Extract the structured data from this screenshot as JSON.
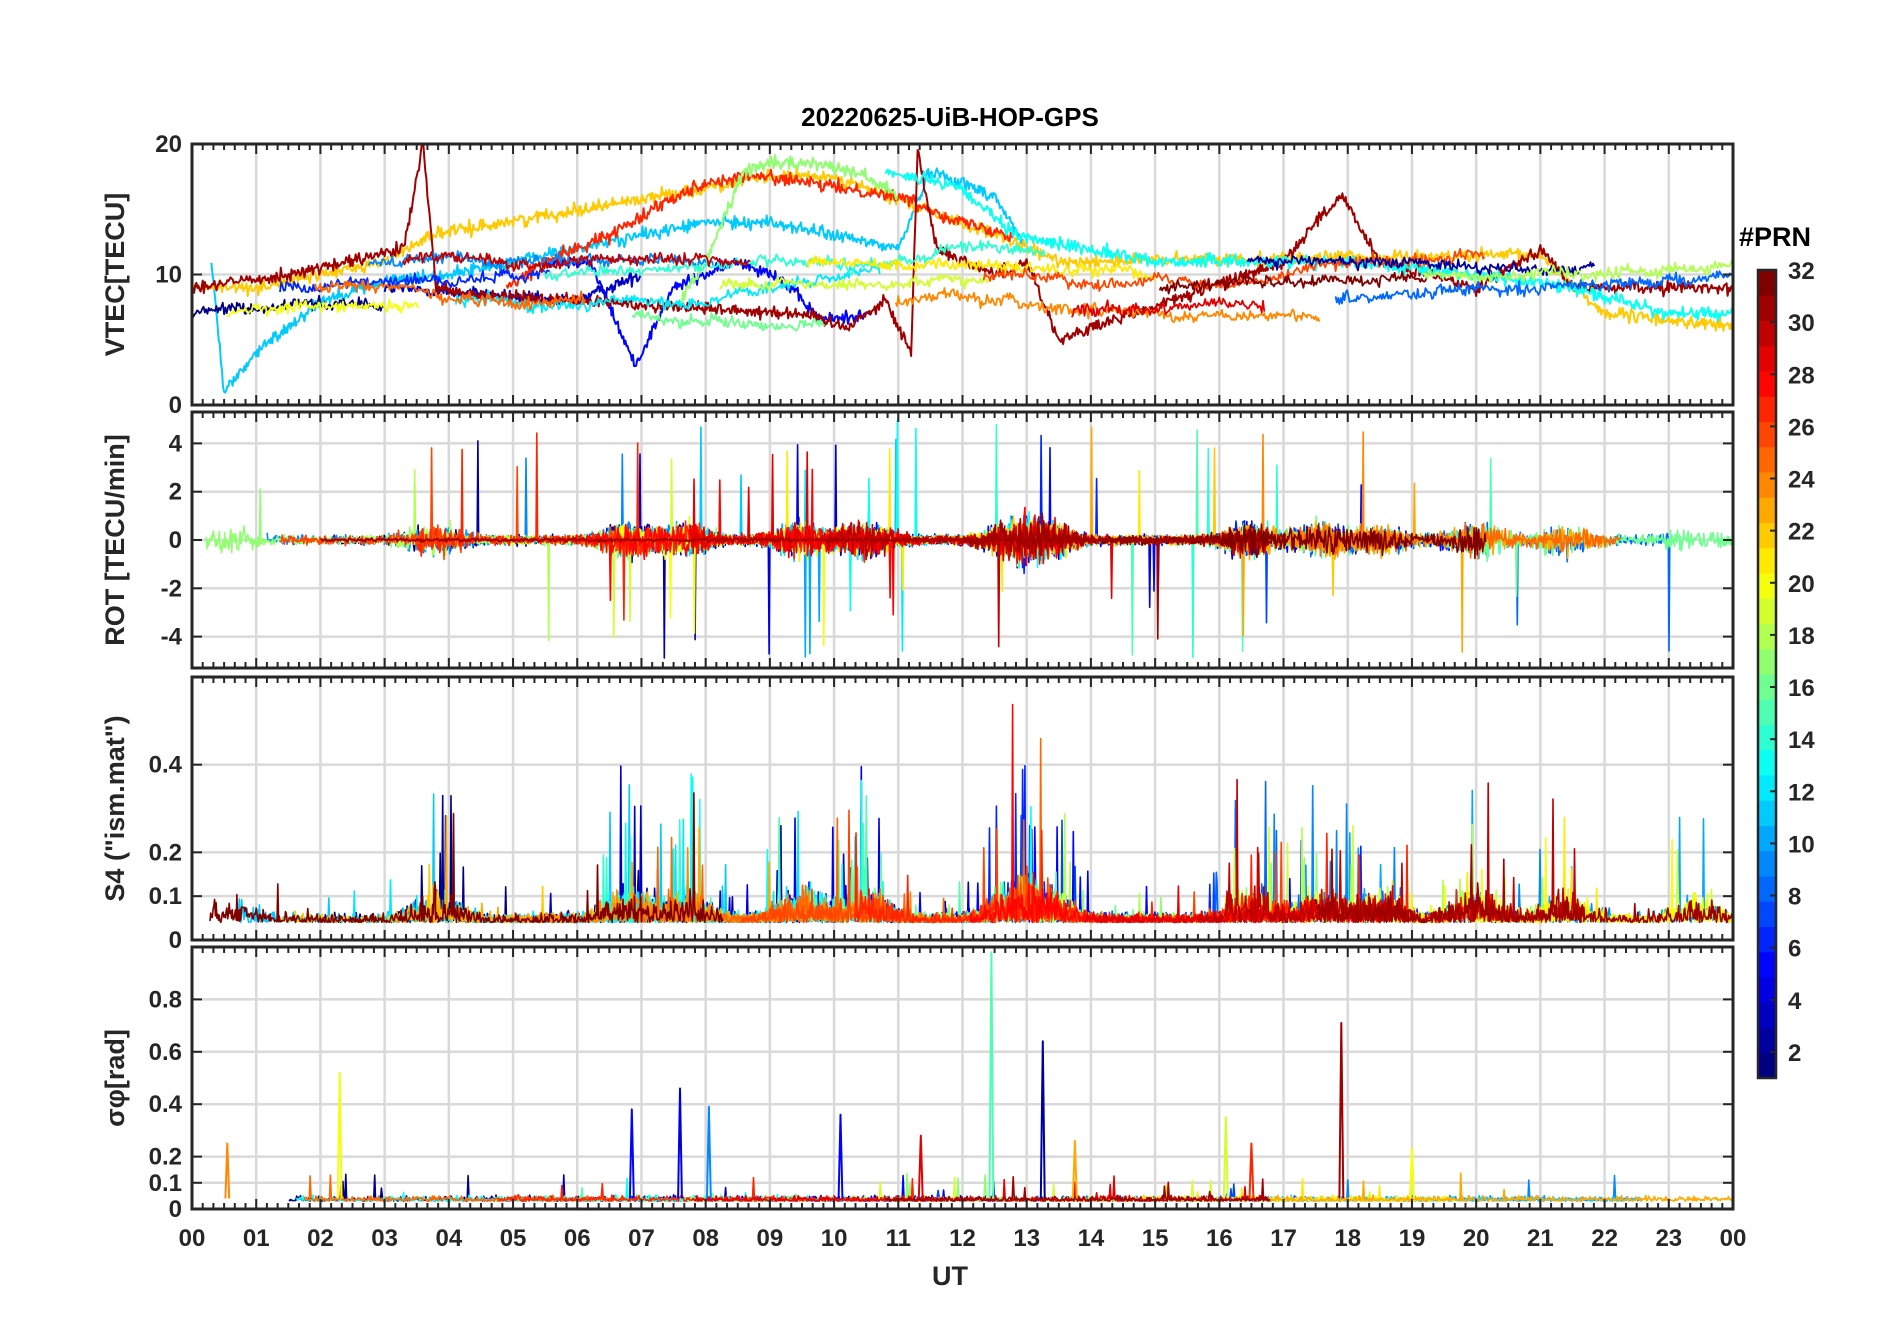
{
  "chart_data": {
    "type": "line",
    "title": "20220625-UiB-HOP-GPS",
    "xlabel": "UT",
    "x_tick_labels": [
      "00",
      "01",
      "02",
      "03",
      "04",
      "05",
      "06",
      "07",
      "08",
      "09",
      "10",
      "11",
      "12",
      "13",
      "14",
      "15",
      "16",
      "17",
      "18",
      "19",
      "20",
      "21",
      "22",
      "23",
      "00"
    ],
    "xlim_hours": [
      0,
      24
    ],
    "grid": true,
    "colorbar": {
      "title": "#PRN",
      "range": [
        1,
        32
      ],
      "tick_labels": [
        "2",
        "4",
        "6",
        "8",
        "10",
        "12",
        "14",
        "16",
        "18",
        "20",
        "22",
        "24",
        "26",
        "28",
        "30",
        "32"
      ],
      "colormap": "jet",
      "placement": "right"
    },
    "panels": [
      {
        "name": "vtec",
        "ylabel": "VTEC[TECU]",
        "ylim": [
          0,
          20
        ],
        "y_ticks": [
          0,
          10,
          20
        ],
        "series": [
          {
            "prn": 3,
            "x": [
              3.0,
              4.5,
              5.5,
              6.0,
              6.5,
              7.0
            ],
            "y": [
              9,
              8.5,
              8,
              8,
              9,
              10
            ]
          },
          {
            "prn": 5,
            "x": [
              5.5,
              6.2,
              6.9,
              7.5,
              8.5,
              9.1,
              9.8,
              10.6
            ],
            "y": [
              11,
              11,
              3,
              9,
              11,
              10,
              6.5,
              7
            ]
          },
          {
            "prn": 11,
            "x": [
              0.3,
              0.5,
              1.0,
              2.0,
              3.0,
              4.0,
              8.0,
              9.0,
              10.0,
              11.0,
              11.5,
              12.5,
              13.0
            ],
            "y": [
              11,
              1,
              4,
              8,
              9.5,
              10,
              14,
              14,
              13,
              12,
              18,
              16,
              12
            ]
          },
          {
            "prn": 22,
            "x": [
              0,
              1.0,
              2.0,
              3.0,
              3.7,
              9.0,
              10.0,
              12.5,
              13.5,
              21.0,
              22.0,
              24.0
            ],
            "y": [
              9,
              9,
              10,
              11,
              13,
              17.5,
              17.5,
              13,
              11,
              11.5,
              7,
              6
            ]
          },
          {
            "prn": 27,
            "x": [
              4.9,
              5.5,
              6.5,
              7.5,
              8.0,
              8.6,
              9.0,
              9.6,
              11.0,
              12.0,
              12.8
            ],
            "y": [
              9,
              11,
              13,
              16,
              17,
              17.5,
              17.5,
              17,
              16,
              14,
              13
            ]
          },
          {
            "prn": 31,
            "x": [
              0,
              1.5,
              2.5,
              3.3,
              3.6,
              3.8,
              4.2,
              9.5,
              10.2,
              10.8,
              11.2,
              11.3,
              11.6,
              12.5,
              13.0,
              13.5,
              17.0,
              17.5,
              17.9,
              18.5,
              20.0,
              21.0,
              21.5,
              22.0,
              24.0
            ],
            "y": [
              9,
              10,
              11,
              12,
              20,
              9,
              8.5,
              7,
              6,
              8,
              4,
              19.5,
              12,
              10,
              11,
              5,
              11,
              14,
              16,
              11,
              9,
              12,
              9,
              9,
              9
            ]
          },
          {
            "prn": 17,
            "x": [
              7.6,
              8.0,
              8.6,
              9.0,
              9.8,
              10.3,
              11.0
            ],
            "y": [
              8,
              11,
              18,
              18.5,
              18.5,
              18,
              16
            ]
          },
          {
            "prn": 13,
            "x": [
              10.8,
              12.0,
              12.8,
              15.0,
              16.0,
              18.0,
              20.0,
              21.5,
              23.0,
              24.0
            ],
            "y": [
              18,
              16.5,
              13,
              11,
              11,
              11,
              10,
              9,
              7,
              7
            ]
          }
        ]
      },
      {
        "name": "rot",
        "ylabel": "ROT [TECU/min]",
        "ylim": [
          -5.3,
          5.3
        ],
        "y_ticks": [
          -4,
          -2,
          0,
          2,
          4
        ],
        "note": "dense noisy traces of all PRNs around 0 with spikes up to ±5"
      },
      {
        "name": "s4",
        "ylabel": "S4 (\"ism.mat\")",
        "ylim": [
          0,
          0.6
        ],
        "y_ticks": [
          0,
          0.1,
          0.2,
          0.4
        ],
        "note": "dense noisy traces, baseline ~0.05 with bursts up to 0.6"
      },
      {
        "name": "sigma_phi",
        "ylabel": "σφ[rad]",
        "ylim": [
          0,
          1.0
        ],
        "y_ticks": [
          0,
          0.1,
          0.2,
          0.4,
          0.6,
          0.8
        ],
        "spikes": [
          {
            "x": 0.55,
            "y": 0.25,
            "prn": 24
          },
          {
            "x": 2.3,
            "y": 0.52,
            "prn": 20
          },
          {
            "x": 6.85,
            "y": 0.38,
            "prn": 5
          },
          {
            "x": 7.6,
            "y": 0.46,
            "prn": 4
          },
          {
            "x": 8.05,
            "y": 0.39,
            "prn": 9
          },
          {
            "x": 10.1,
            "y": 0.36,
            "prn": 5
          },
          {
            "x": 11.35,
            "y": 0.28,
            "prn": 29
          },
          {
            "x": 12.45,
            "y": 0.98,
            "prn": 15
          },
          {
            "x": 13.25,
            "y": 0.64,
            "prn": 2
          },
          {
            "x": 13.75,
            "y": 0.26,
            "prn": 23
          },
          {
            "x": 16.1,
            "y": 0.35,
            "prn": 19
          },
          {
            "x": 16.5,
            "y": 0.25,
            "prn": 27
          },
          {
            "x": 17.9,
            "y": 0.71,
            "prn": 31
          },
          {
            "x": 19.0,
            "y": 0.23,
            "prn": 20
          }
        ]
      }
    ]
  }
}
